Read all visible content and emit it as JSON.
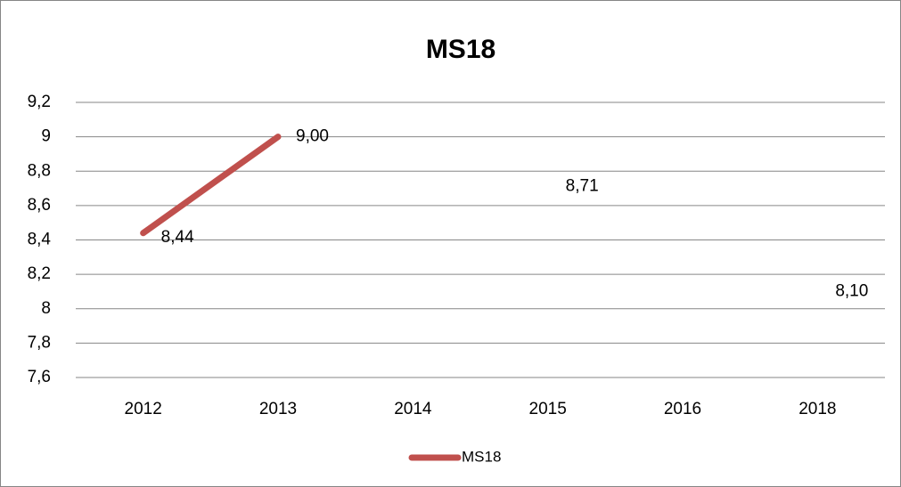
{
  "chart_data": {
    "type": "line",
    "title": "MS18",
    "categories": [
      "2012",
      "2013",
      "2014",
      "2015",
      "2016",
      "2018"
    ],
    "series": [
      {
        "name": "MS18",
        "color": "#c0504d",
        "values": [
          8.44,
          9.0,
          null,
          8.71,
          null,
          8.1
        ],
        "value_labels": [
          "8,44",
          "9,00",
          null,
          "8,71",
          null,
          "8,10"
        ]
      }
    ],
    "ylim": [
      7.6,
      9.2
    ],
    "yticks": [
      {
        "value": 7.6,
        "label": "7,6"
      },
      {
        "value": 7.8,
        "label": "7,8"
      },
      8,
      {
        "value": 8.2,
        "label": "8,2"
      },
      {
        "value": 8.4,
        "label": "8,4"
      },
      {
        "value": 8.6,
        "label": "8,6"
      },
      {
        "value": 8.8,
        "label": "8,8"
      },
      9,
      {
        "value": 9.2,
        "label": "9,2"
      }
    ],
    "grid": true,
    "legend": "bottom"
  }
}
